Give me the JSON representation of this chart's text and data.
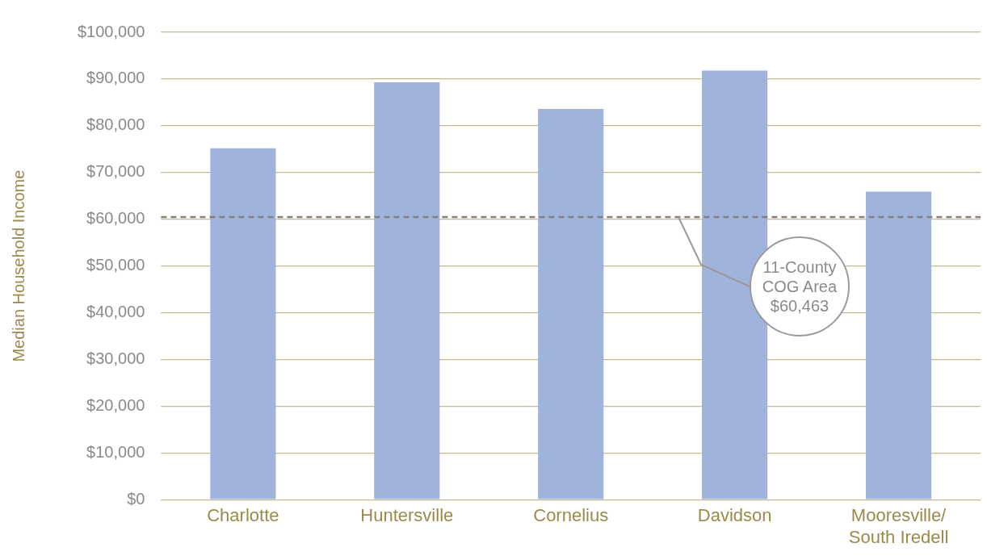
{
  "chart_data": {
    "type": "bar",
    "ylabel": "Median Household Income",
    "categories": [
      "Charlotte",
      "Huntersville",
      "Cornelius",
      "Davidson",
      "Mooresville/\nSouth Iredell"
    ],
    "values": [
      75200,
      89300,
      83600,
      91800,
      65900
    ],
    "color": "#a0b3dd",
    "ylim": [
      0,
      100000
    ],
    "yticks": [
      {
        "value": 0,
        "label": "$0"
      },
      {
        "value": 10000,
        "label": "$10,000"
      },
      {
        "value": 20000,
        "label": "$20,000"
      },
      {
        "value": 30000,
        "label": "$30,000"
      },
      {
        "value": 40000,
        "label": "$40,000"
      },
      {
        "value": 50000,
        "label": "$50,000"
      },
      {
        "value": 60000,
        "label": "$60,000"
      },
      {
        "value": 70000,
        "label": "$70,000"
      },
      {
        "value": 80000,
        "label": "$80,000"
      },
      {
        "value": 90000,
        "label": "$90,000"
      },
      {
        "value": 100000,
        "label": "$100,000"
      }
    ],
    "grid": "y",
    "legend": false,
    "ref_lines": [
      {
        "axis": "y",
        "value": 60463,
        "label": "11-County\nCOG Area\n$60,463",
        "color": "#808080",
        "line_style": "dashed"
      }
    ]
  }
}
